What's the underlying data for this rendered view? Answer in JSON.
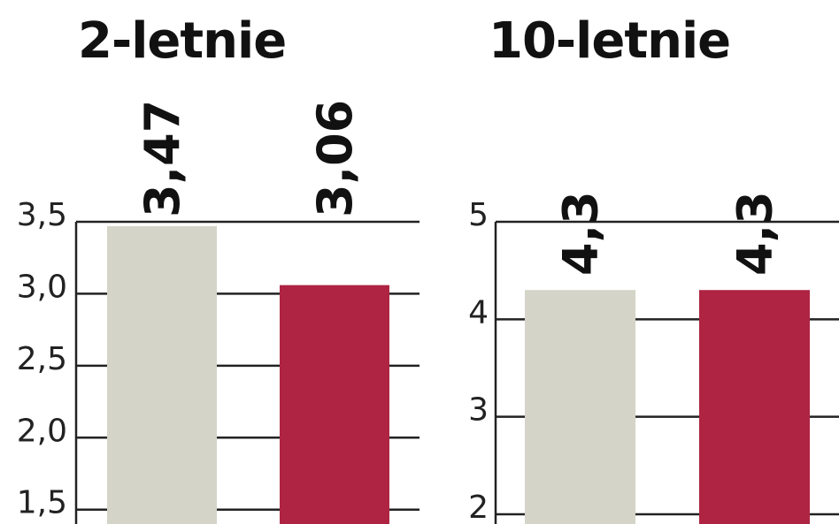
{
  "colors": {
    "primary": "#d4d4c8",
    "accent": "#ae2442",
    "axis": "#222222"
  },
  "chart_data": [
    {
      "type": "bar",
      "title": "2-letnie",
      "categories": [
        "",
        ""
      ],
      "values": [
        3.47,
        3.06
      ],
      "value_labels": [
        "3,47",
        "3,06"
      ],
      "yticks": [
        1.5,
        2.0,
        2.5,
        3.0,
        3.5
      ],
      "ytick_labels": [
        "1,5",
        "2,0",
        "2,5",
        "3,0",
        "3,5"
      ],
      "ylim": [
        1.4,
        3.5
      ],
      "grid": true
    },
    {
      "type": "bar",
      "title": "10-letnie",
      "categories": [
        "",
        ""
      ],
      "values": [
        4.3,
        4.3
      ],
      "value_labels": [
        "4,3",
        "4,3"
      ],
      "yticks": [
        2,
        3,
        4,
        5
      ],
      "ytick_labels": [
        "2",
        "3",
        "4",
        "5"
      ],
      "ylim": [
        1.9,
        5
      ],
      "grid": true
    }
  ]
}
